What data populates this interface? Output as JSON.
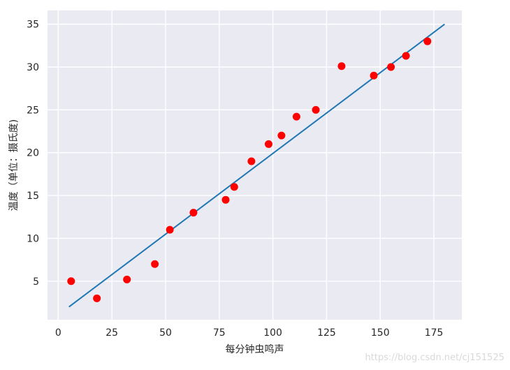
{
  "chart_data": {
    "type": "scatter",
    "xlabel": "每分钟虫鸣声",
    "ylabel": "温度（单位：摄氏度)",
    "xlim": [
      -5,
      188
    ],
    "ylim": [
      0.5,
      36.6
    ],
    "xticks": [
      0,
      25,
      50,
      75,
      100,
      125,
      150,
      175
    ],
    "yticks": [
      5,
      10,
      15,
      20,
      25,
      30,
      35
    ],
    "grid": true,
    "background": "#EAEAF2",
    "points_color": "#FF0000",
    "line_color": "#1F77B4",
    "series": [
      {
        "kind": "scatter",
        "x": [
          6,
          18,
          32,
          45,
          52,
          63,
          78,
          82,
          90,
          98,
          104,
          111,
          120,
          132,
          147,
          155,
          162,
          172
        ],
        "y": [
          5,
          3,
          5.2,
          7,
          11,
          13,
          14.5,
          16,
          19,
          21,
          22,
          24.2,
          25,
          30.1,
          29,
          30,
          31.3,
          33
        ]
      },
      {
        "kind": "line",
        "x": [
          5,
          180
        ],
        "y": [
          2,
          35
        ]
      }
    ]
  },
  "watermark": "https://blog.csdn.net/cj151525"
}
